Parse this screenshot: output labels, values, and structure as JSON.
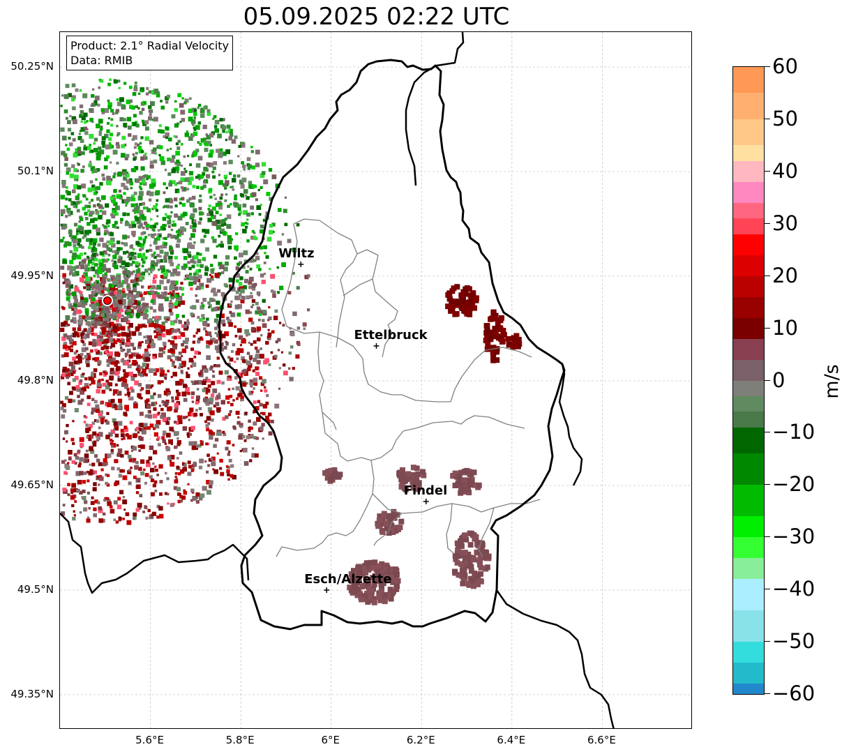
{
  "title": "05.09.2025 02:22 UTC",
  "info": {
    "product": "Product: 2.1° Radial Velocity",
    "data_source": "Data: RMIB"
  },
  "map": {
    "lat_ticks": [
      "50.25°N",
      "50.1°N",
      "49.95°N",
      "49.8°N",
      "49.65°N",
      "49.5°N",
      "49.35°N"
    ],
    "lon_ticks": [
      "5.6°E",
      "5.8°E",
      "6°E",
      "6.2°E",
      "6.4°E",
      "6.6°E"
    ],
    "lat_values": [
      50.25,
      50.1,
      49.95,
      49.8,
      49.65,
      49.5,
      49.35
    ],
    "lon_values": [
      5.6,
      5.8,
      6.0,
      6.2,
      6.4,
      6.6
    ],
    "lon_range": [
      5.4,
      6.8
    ],
    "lat_range": [
      49.3,
      50.3
    ],
    "grid": true,
    "radar_site_color": "#ff0000",
    "cities": [
      {
        "name": "Wiltz",
        "lon": 5.933,
        "lat": 49.967
      },
      {
        "name": "Ettelbruck",
        "lon": 6.1,
        "lat": 49.85
      },
      {
        "name": "Findel",
        "lon": 6.21,
        "lat": 49.627
      },
      {
        "name": "Esch/Alzette",
        "lon": 5.99,
        "lat": 49.5
      }
    ],
    "radar_site": {
      "lon": 5.505,
      "lat": 49.915
    }
  },
  "colorbar": {
    "unit": "m/s",
    "tick_labels": [
      "60",
      "50",
      "40",
      "30",
      "20",
      "10",
      "0",
      "−10",
      "−20",
      "−30",
      "−40",
      "−50",
      "−60"
    ],
    "tick_values": [
      60,
      50,
      40,
      30,
      20,
      10,
      0,
      -10,
      -20,
      -30,
      -40,
      -50,
      -60
    ],
    "range": [
      -60,
      60
    ]
  }
}
